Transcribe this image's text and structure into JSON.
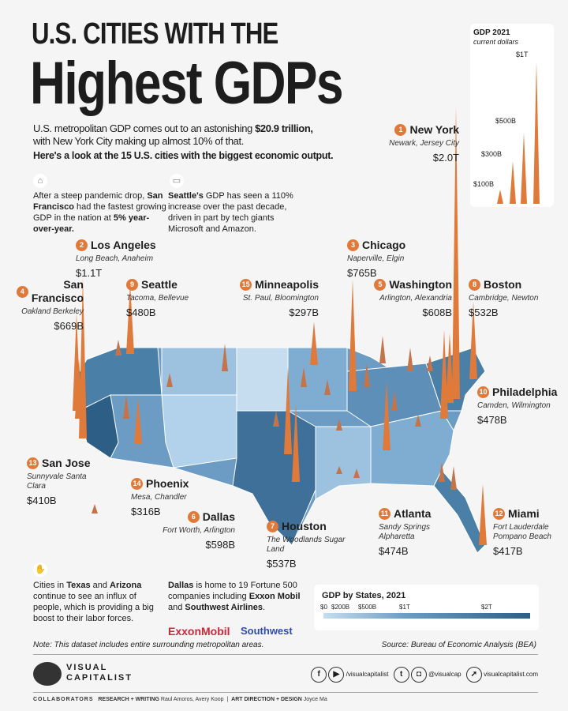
{
  "title_line1": "U.S. CITIES WITH THE",
  "title_line2": "Highest GDPs",
  "intro": {
    "text_a": "U.S. metropolitan GDP comes out to an astonishing ",
    "text_bold": "$20.9 trillion,",
    "text_b": " with New York City making up almost 10% of that.",
    "subhead": "Here's a look at the 15 U.S. cities with the biggest economic output."
  },
  "notes": {
    "sf": {
      "a": "After a steep pandemic drop, ",
      "b": "San Francisco",
      "c": " had the fastest growing GDP in the nation at ",
      "d": "5% year-over-year."
    },
    "seattle": {
      "a": "Seattle's",
      "b": " GDP has seen a 110% increase over the past decade, driven in part by tech giants Microsoft and Amazon."
    },
    "texas": {
      "a": "Cities in ",
      "b": "Texas",
      "c": " and ",
      "d": "Arizona",
      "e": " continue to see an influx of people, which is providing a big boost to their labor forces."
    },
    "dallas": {
      "a": "Dallas",
      "b": " is home to 19 Fortune 500 companies including ",
      "c": "Exxon Mobil",
      "d": " and ",
      "e": "Southwest Airlines",
      "f": "."
    },
    "logos": [
      "ExxonMobil",
      "Southwest"
    ]
  },
  "scale_legend": {
    "title": "GDP 2021",
    "subtitle": "current dollars",
    "marks": [
      "$100B",
      "$300B",
      "$500B",
      "$1T"
    ]
  },
  "state_legend": {
    "title": "GDP by States, 2021",
    "ticks": [
      "$0",
      "$200B",
      "$500B",
      "$1T",
      "$2T"
    ]
  },
  "cities": [
    {
      "rank": "1",
      "name": "New York",
      "sub": "Newark, Jersey City",
      "gdp": "$2.0T",
      "value_b": 2000
    },
    {
      "rank": "2",
      "name": "Los Angeles",
      "sub": "Long Beach, Anaheim",
      "gdp": "$1.1T",
      "value_b": 1100
    },
    {
      "rank": "3",
      "name": "Chicago",
      "sub": "Naperville, Elgin",
      "gdp": "$765B",
      "value_b": 765
    },
    {
      "rank": "4",
      "name": "San Francisco",
      "sub": "Oakland Berkeley",
      "gdp": "$669B",
      "value_b": 669
    },
    {
      "rank": "5",
      "name": "Washington",
      "sub": "Arlington, Alexandria",
      "gdp": "$608B",
      "value_b": 608
    },
    {
      "rank": "6",
      "name": "Dallas",
      "sub": "Fort Worth, Arlington",
      "gdp": "$598B",
      "value_b": 598
    },
    {
      "rank": "7",
      "name": "Houston",
      "sub": "The Woodlands Sugar Land",
      "gdp": "$537B",
      "value_b": 537
    },
    {
      "rank": "8",
      "name": "Boston",
      "sub": "Cambridge, Newton",
      "gdp": "$532B",
      "value_b": 532
    },
    {
      "rank": "9",
      "name": "Seattle",
      "sub": "Tacoma, Bellevue",
      "gdp": "$480B",
      "value_b": 480
    },
    {
      "rank": "10",
      "name": "Philadelphia",
      "sub": "Camden, Wilmington",
      "gdp": "$478B",
      "value_b": 478
    },
    {
      "rank": "11",
      "name": "Atlanta",
      "sub": "Sandy Springs Alpharetta",
      "gdp": "$474B",
      "value_b": 474
    },
    {
      "rank": "12",
      "name": "Miami",
      "sub": "Fort Lauderdale Pompano Beach",
      "gdp": "$417B",
      "value_b": 417
    },
    {
      "rank": "13",
      "name": "San Jose",
      "sub": "Sunnyvale Santa Clara",
      "gdp": "$410B",
      "value_b": 410
    },
    {
      "rank": "14",
      "name": "Phoenix",
      "sub": "Mesa, Chandler",
      "gdp": "$316B",
      "value_b": 316
    },
    {
      "rank": "15",
      "name": "Minneapolis",
      "sub": "St. Paul,  Bloomington",
      "gdp": "$297B",
      "value_b": 297
    }
  ],
  "footer": {
    "note": "Note: This dataset includes entire surrounding metropolitan areas.",
    "source": "Source: Bureau of Economic Analysis (BEA)",
    "brand_line1": "VISUAL",
    "brand_line2": "CAPITALIST",
    "social1": "/visualcapitalist",
    "social2": "@visualcap",
    "website": "visualcapitalist.com",
    "collab_label": "COLLABORATORS",
    "research_label": "RESEARCH + WRITING",
    "research_names": "Raul Amoros, Avery Koop",
    "art_label": "ART DIRECTION + DESIGN",
    "art_names": "Joyce Ma"
  },
  "colors": {
    "accent": "#e07a3a",
    "map_dark": "#4a7fa8",
    "map_light": "#c5ddef"
  }
}
